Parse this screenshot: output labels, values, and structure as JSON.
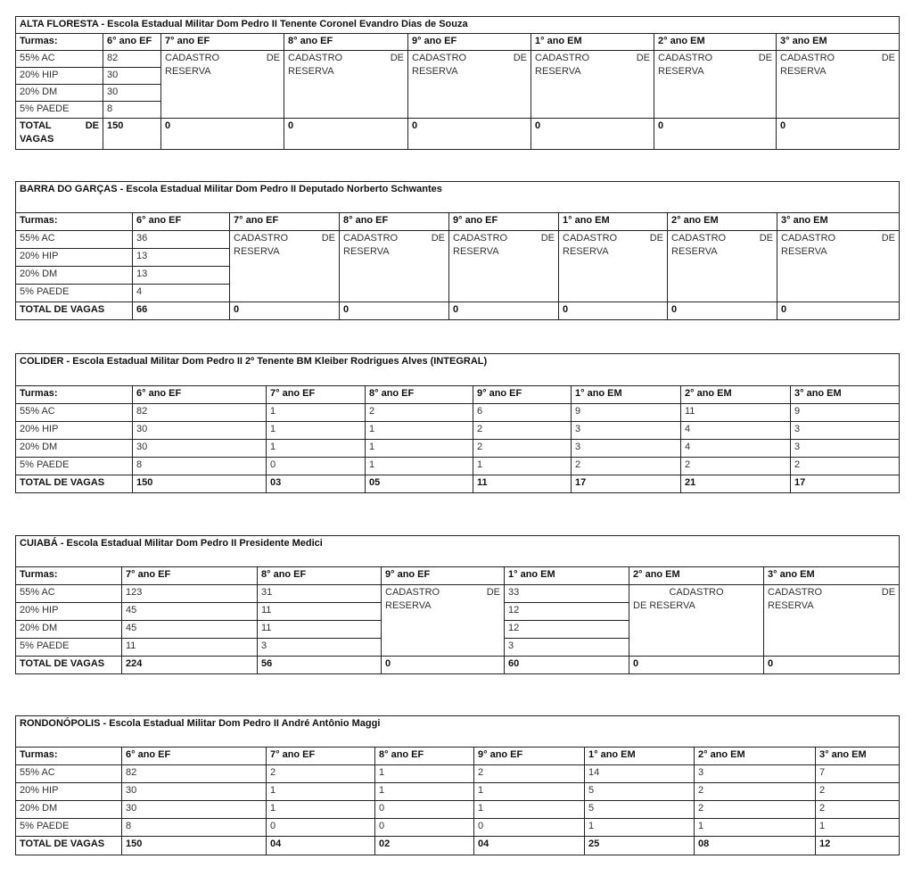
{
  "row_labels": [
    "55% AC",
    "20% HIP",
    "20% DM",
    "5% PAEDE"
  ],
  "header_label": "Turmas:",
  "schools": [
    {
      "title": "ALTA FLORESTA - Escola Estadual Militar Dom Pedro II Tenente Coronel Evandro Dias de Souza",
      "total_label": "TOTAL DE VAGAS",
      "columns": [
        {
          "grade": "6° ano EF",
          "values": [
            "82",
            "30",
            "30",
            "8"
          ],
          "total": "150"
        },
        {
          "grade": "7° ano EF",
          "reserva": "CADASTRO DE RESERVA",
          "total": "0"
        },
        {
          "grade": "8° ano EF",
          "reserva": "CADASTRO DE RESERVA",
          "total": "0"
        },
        {
          "grade": "9° ano EF",
          "reserva": "CADASTRO DE RESERVA",
          "total": "0"
        },
        {
          "grade": "1° ano EM",
          "reserva": "CADASTRO DE RESERVA",
          "total": "0"
        },
        {
          "grade": "2° ano EM",
          "reserva": "CADASTRO DE RESERVA",
          "total": "0"
        },
        {
          "grade": "3° ano EM",
          "reserva": "CADASTRO DE RESERVA",
          "total": "0"
        }
      ]
    },
    {
      "title": "BARRA DO GARÇAS - Escola Estadual Militar Dom Pedro II Deputado Norberto Schwantes",
      "total_label": "TOTAL DE VAGAS",
      "columns": [
        {
          "grade": "6° ano EF",
          "values": [
            "36",
            "13",
            "13",
            "4"
          ],
          "total": "66"
        },
        {
          "grade": "7° ano EF",
          "reserva": "CADASTRO DE RESERVA",
          "total": "0"
        },
        {
          "grade": "8° ano EF",
          "reserva": "CADASTRO DE RESERVA",
          "total": "0"
        },
        {
          "grade": "9° ano EF",
          "reserva": "CADASTRO DE RESERVA",
          "total": "0"
        },
        {
          "grade": "1° ano EM",
          "reserva": "CADASTRO DE RESERVA",
          "total": "0"
        },
        {
          "grade": "2° ano EM",
          "reserva": "CADASTRO DE RESERVA",
          "total": "0"
        },
        {
          "grade": "3° ano EM",
          "reserva": "CADASTRO DE RESERVA",
          "total": "0"
        }
      ]
    },
    {
      "title": "COLIDER -  Escola Estadual Militar Dom Pedro II 2º Tenente BM Kleiber Rodrigues Alves (INTEGRAL)",
      "total_label": "TOTAL DE VAGAS",
      "columns": [
        {
          "grade": "6° ano EF",
          "values": [
            "82",
            "30",
            "30",
            "8"
          ],
          "total": "150"
        },
        {
          "grade": "7° ano EF",
          "values": [
            "1",
            "1",
            "1",
            "0"
          ],
          "total": "03"
        },
        {
          "grade": "8° ano EF",
          "values": [
            "2",
            "1",
            "1",
            "1"
          ],
          "total": "05"
        },
        {
          "grade": "9° ano EF",
          "values": [
            "6",
            "2",
            "2",
            "1"
          ],
          "total": "11"
        },
        {
          "grade": "1° ano EM",
          "values": [
            "9",
            "3",
            "3",
            "2"
          ],
          "total": "17"
        },
        {
          "grade": "2° ano EM",
          "values": [
            "11",
            "4",
            "4",
            "2"
          ],
          "total": "21"
        },
        {
          "grade": "3° ano EM",
          "values": [
            "9",
            "3",
            "3",
            "2"
          ],
          "total": "17"
        }
      ]
    },
    {
      "title": "CUIABÁ - Escola Estadual Militar Dom Pedro II Presidente Medici",
      "total_label": "TOTAL DE VAGAS",
      "columns": [
        {
          "grade": "7° ano EF",
          "values": [
            "123",
            "45",
            "45",
            "11"
          ],
          "total": "224"
        },
        {
          "grade": "8° ano EF",
          "values": [
            "31",
            "11",
            "11",
            "3"
          ],
          "total": "56"
        },
        {
          "grade": "9° ano EF",
          "reserva": "CADASTRO DE RESERVA",
          "total": "0"
        },
        {
          "grade": "1° ano EM",
          "values": [
            "33",
            "12",
            "12",
            "3"
          ],
          "total": "60"
        },
        {
          "grade": "2° ano EM",
          "reserva": "CADASTRO DE RESERVA",
          "reserva_centered": true,
          "total": "0"
        },
        {
          "grade": "3° ano EM",
          "reserva": "CADASTRO DE RESERVA",
          "total": "0"
        }
      ]
    },
    {
      "title": "RONDONÓPOLIS - Escola Estadual Militar Dom Pedro II André Antônio Maggi",
      "total_label": "TOTAL DE VAGAS",
      "columns": [
        {
          "grade": "6° ano EF",
          "values": [
            "82",
            "30",
            "30",
            "8"
          ],
          "total": "150"
        },
        {
          "grade": "7° ano EF",
          "values": [
            "2",
            "1",
            "1",
            "0"
          ],
          "total": "04"
        },
        {
          "grade": "8° ano EF",
          "values": [
            "1",
            "1",
            "0",
            "0"
          ],
          "total": "02"
        },
        {
          "grade": "9° ano EF",
          "values": [
            "2",
            "1",
            "1",
            "0"
          ],
          "total": "04"
        },
        {
          "grade": "1° ano EM",
          "values": [
            "14",
            "5",
            "5",
            "1"
          ],
          "total": "25"
        },
        {
          "grade": "2° ano EM",
          "values": [
            "3",
            "2",
            "2",
            "1"
          ],
          "total": "08"
        },
        {
          "grade": "3° ano EM",
          "values": [
            "7",
            "2",
            "2",
            "1"
          ],
          "total": "12"
        }
      ]
    }
  ]
}
